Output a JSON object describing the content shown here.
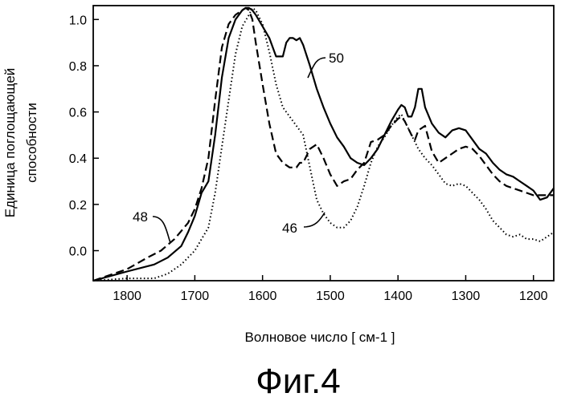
{
  "chart_data": {
    "type": "line",
    "xlabel": "Волновое число [ см-1 ]",
    "ylabel_lines": [
      "Единица поглощающей",
      "способности"
    ],
    "caption": "Фиг.4",
    "xlim": [
      1850,
      1170
    ],
    "ylim": [
      -0.13,
      1.06
    ],
    "x_ticks": [
      1800,
      1700,
      1600,
      1500,
      1400,
      1300,
      1200
    ],
    "x_tick_labels": [
      "1800",
      "1700",
      "1600",
      "1500",
      "1400",
      "1300",
      "1200"
    ],
    "y_ticks": [
      0.0,
      0.2,
      0.4,
      0.6,
      0.8,
      1.0
    ],
    "y_tick_labels": [
      "0.0",
      "0.2",
      "0.4",
      "0.6",
      "0.8",
      "1.0"
    ],
    "grid": false,
    "series": [
      {
        "name": "50",
        "style": "solid",
        "color": "#000000",
        "x": [
          1850,
          1800,
          1760,
          1740,
          1720,
          1710,
          1700,
          1690,
          1680,
          1670,
          1660,
          1650,
          1640,
          1630,
          1625,
          1620,
          1615,
          1610,
          1600,
          1590,
          1580,
          1570,
          1565,
          1560,
          1555,
          1550,
          1545,
          1540,
          1530,
          1520,
          1510,
          1500,
          1490,
          1480,
          1470,
          1460,
          1450,
          1440,
          1430,
          1420,
          1410,
          1400,
          1395,
          1390,
          1385,
          1380,
          1375,
          1370,
          1365,
          1360,
          1350,
          1340,
          1330,
          1320,
          1310,
          1300,
          1290,
          1280,
          1270,
          1260,
          1250,
          1240,
          1230,
          1220,
          1210,
          1200,
          1190,
          1180,
          1170
        ],
        "y": [
          -0.13,
          -0.09,
          -0.06,
          -0.03,
          0.02,
          0.08,
          0.15,
          0.25,
          0.3,
          0.5,
          0.75,
          0.92,
          1.0,
          1.04,
          1.05,
          1.05,
          1.04,
          1.02,
          0.97,
          0.92,
          0.84,
          0.84,
          0.9,
          0.92,
          0.92,
          0.91,
          0.92,
          0.89,
          0.8,
          0.7,
          0.62,
          0.55,
          0.49,
          0.45,
          0.4,
          0.38,
          0.37,
          0.4,
          0.44,
          0.5,
          0.56,
          0.61,
          0.63,
          0.62,
          0.58,
          0.58,
          0.62,
          0.7,
          0.7,
          0.62,
          0.55,
          0.51,
          0.49,
          0.52,
          0.53,
          0.52,
          0.48,
          0.44,
          0.42,
          0.38,
          0.35,
          0.33,
          0.32,
          0.3,
          0.28,
          0.26,
          0.22,
          0.23,
          0.27
        ]
      },
      {
        "name": "48",
        "style": "dashed",
        "color": "#000000",
        "x": [
          1850,
          1820,
          1800,
          1770,
          1750,
          1730,
          1710,
          1700,
          1690,
          1680,
          1670,
          1660,
          1650,
          1640,
          1630,
          1625,
          1620,
          1615,
          1610,
          1600,
          1590,
          1580,
          1570,
          1560,
          1550,
          1545,
          1540,
          1530,
          1520,
          1510,
          1500,
          1490,
          1480,
          1470,
          1460,
          1450,
          1440,
          1430,
          1420,
          1410,
          1400,
          1395,
          1390,
          1380,
          1375,
          1370,
          1360,
          1350,
          1340,
          1330,
          1320,
          1310,
          1300,
          1290,
          1280,
          1270,
          1260,
          1250,
          1240,
          1230,
          1220,
          1210,
          1200,
          1190,
          1180,
          1170
        ],
        "y": [
          -0.13,
          -0.1,
          -0.08,
          -0.03,
          0.0,
          0.05,
          0.12,
          0.18,
          0.27,
          0.4,
          0.65,
          0.88,
          0.98,
          1.02,
          1.04,
          1.05,
          1.04,
          1.0,
          0.9,
          0.72,
          0.55,
          0.42,
          0.38,
          0.36,
          0.36,
          0.38,
          0.38,
          0.44,
          0.46,
          0.4,
          0.33,
          0.28,
          0.3,
          0.31,
          0.35,
          0.38,
          0.47,
          0.48,
          0.5,
          0.54,
          0.57,
          0.58,
          0.56,
          0.5,
          0.48,
          0.52,
          0.54,
          0.43,
          0.38,
          0.4,
          0.42,
          0.44,
          0.45,
          0.44,
          0.41,
          0.37,
          0.33,
          0.3,
          0.28,
          0.27,
          0.26,
          0.25,
          0.24,
          0.24,
          0.24,
          0.24
        ]
      },
      {
        "name": "46",
        "style": "dotted",
        "color": "#000000",
        "x": [
          1850,
          1800,
          1760,
          1740,
          1720,
          1700,
          1690,
          1680,
          1670,
          1660,
          1650,
          1640,
          1630,
          1620,
          1615,
          1610,
          1600,
          1590,
          1580,
          1570,
          1560,
          1550,
          1540,
          1530,
          1520,
          1510,
          1500,
          1490,
          1480,
          1470,
          1460,
          1450,
          1440,
          1430,
          1420,
          1410,
          1400,
          1395,
          1390,
          1380,
          1370,
          1360,
          1350,
          1340,
          1330,
          1320,
          1310,
          1300,
          1290,
          1280,
          1270,
          1260,
          1250,
          1240,
          1230,
          1220,
          1210,
          1200,
          1190,
          1180,
          1170
        ],
        "y": [
          -0.13,
          -0.12,
          -0.12,
          -0.1,
          -0.06,
          0.0,
          0.05,
          0.1,
          0.25,
          0.45,
          0.65,
          0.85,
          0.97,
          1.02,
          1.05,
          1.04,
          0.98,
          0.86,
          0.72,
          0.62,
          0.58,
          0.54,
          0.5,
          0.36,
          0.22,
          0.16,
          0.12,
          0.1,
          0.1,
          0.13,
          0.19,
          0.28,
          0.38,
          0.45,
          0.49,
          0.54,
          0.58,
          0.59,
          0.56,
          0.5,
          0.44,
          0.4,
          0.37,
          0.33,
          0.29,
          0.28,
          0.29,
          0.28,
          0.25,
          0.22,
          0.18,
          0.13,
          0.1,
          0.07,
          0.06,
          0.07,
          0.05,
          0.05,
          0.04,
          0.06,
          0.08
        ]
      }
    ],
    "annotations": [
      {
        "text": "50",
        "series": "50"
      },
      {
        "text": "48",
        "series": "48"
      },
      {
        "text": "46",
        "series": "46"
      }
    ]
  }
}
